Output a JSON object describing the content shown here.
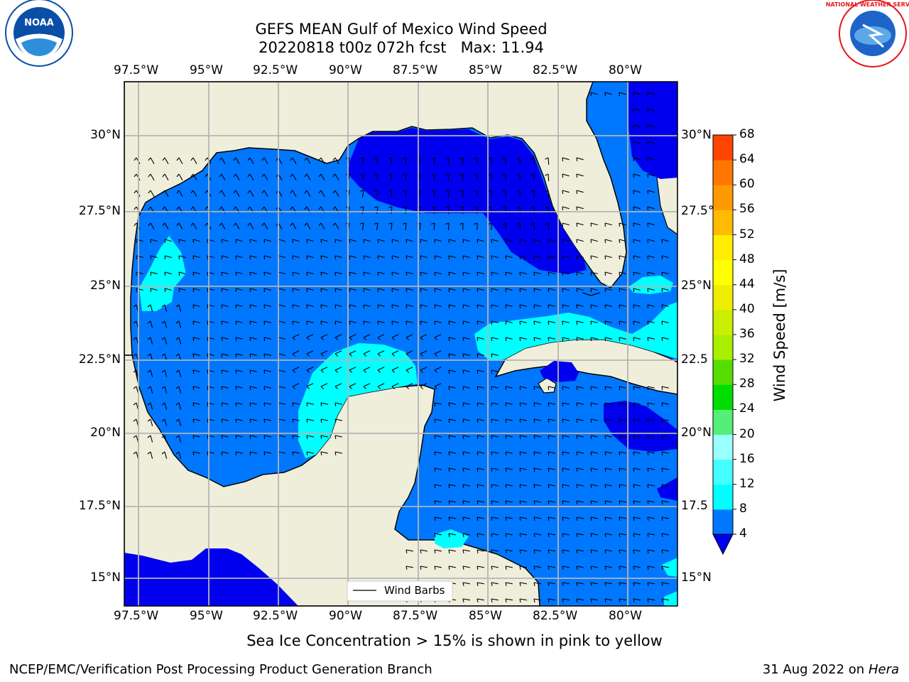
{
  "title_line1": "GEFS MEAN Gulf of Mexico Wind Speed",
  "title_line2": "20220818 t00z 072h fcst   Max: 11.94",
  "logos": {
    "left": {
      "name": "NOAA",
      "ring_text": "NATIONAL OCEANIC AND ATMOSPHERIC ADMINISTRATION · U.S. DEPARTMENT OF COMMERCE",
      "color": "#0a4fa6"
    },
    "right": {
      "name": "NATIONAL WEATHER SERVICE",
      "color": "#e4161b"
    }
  },
  "lon_ticks": [
    "97.5°W",
    "95°W",
    "92.5°W",
    "90°W",
    "87.5°W",
    "85°W",
    "82.5°W",
    "80°W"
  ],
  "lat_ticks_left": [
    "30°N",
    "27.5°N",
    "25°N",
    "22.5°N",
    "20°N",
    "17.5°N",
    "15°N"
  ],
  "lat_ticks_right": [
    "30°N",
    "27.5°",
    "25°N",
    "22.5",
    "20°N",
    "17.5",
    "15°N"
  ],
  "legend_label": "Wind Barbs",
  "colorbar": {
    "label": "Wind Speed [m/s]",
    "ticks": [
      "4",
      "8",
      "12",
      "16",
      "20",
      "24",
      "28",
      "32",
      "36",
      "40",
      "44",
      "48",
      "52",
      "56",
      "60",
      "64",
      "68"
    ],
    "colors": [
      "#0077ff",
      "#00ffff",
      "#44ffff",
      "#99ffff",
      "#55ee77",
      "#00dd00",
      "#55dd00",
      "#aaee00",
      "#ccee00",
      "#eeee00",
      "#ffff00",
      "#ffee00",
      "#ffbb00",
      "#ff9900",
      "#ff7700",
      "#ff4400",
      "#ff0000"
    ],
    "under_color": "#0000ee"
  },
  "colors": {
    "land": "#efeedb",
    "wind_4_8": "#0077ff",
    "wind_below_4": "#0000ee",
    "wind_8_12": "#00ffff",
    "wind_12_16": "#44ffff"
  },
  "caption": "Sea Ice Concentration > 15% is shown in pink to yellow",
  "footer_left": "NCEP/EMC/Verification Post Processing Product Generation Branch",
  "footer_date": "31 Aug 2022 on",
  "footer_host": "Hera"
}
